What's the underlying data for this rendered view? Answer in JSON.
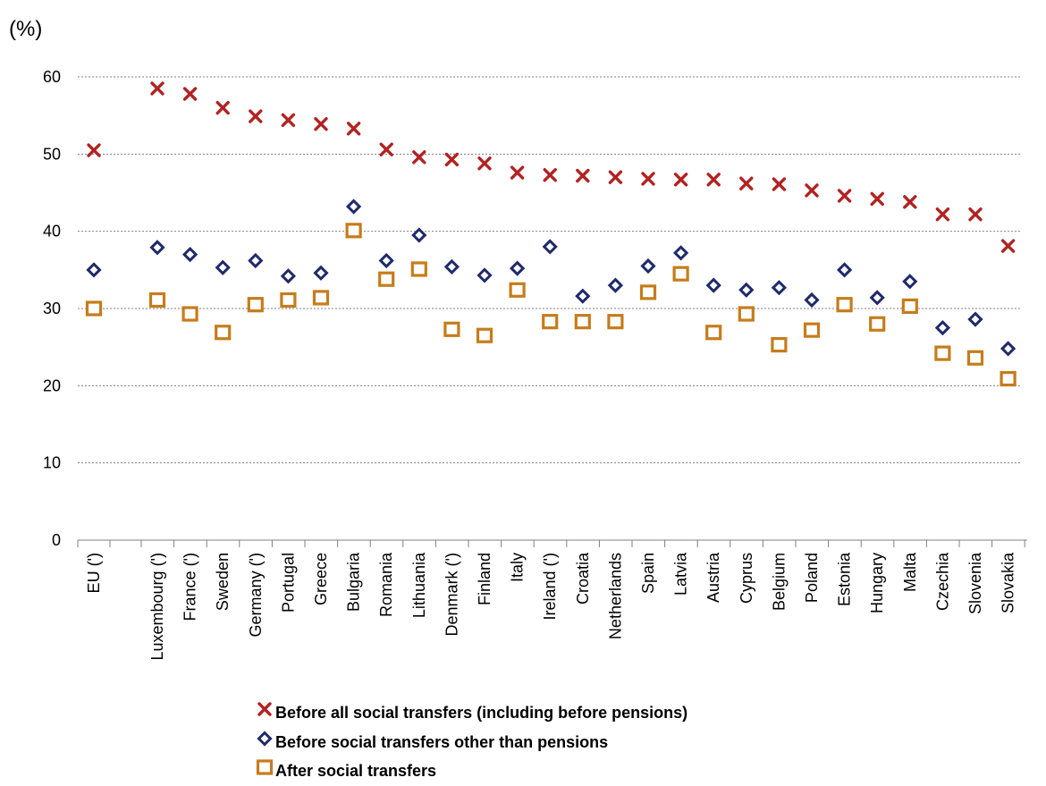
{
  "chart_data": {
    "type": "scatter",
    "unit_label": "(%)",
    "categories": [
      "EU (')",
      "Luxembourg (')",
      "France (')",
      "Sweden",
      "Germany (')",
      "Portugal",
      "Greece",
      "Bulgaria",
      "Romania",
      "Lithuania",
      "Denmark (')",
      "Finland",
      "Italy",
      "Ireland (')",
      "Croatia",
      "Netherlands",
      "Spain",
      "Latvia",
      "Austria",
      "Cyprus",
      "Belgium",
      "Poland",
      "Estonia",
      "Hungary",
      "Malta",
      "Czechia",
      "Slovenia",
      "Slovakia"
    ],
    "ylim": [
      0,
      60
    ],
    "yticks": [
      0,
      10,
      20,
      30,
      40,
      50,
      60
    ],
    "grid": true,
    "legend_position": "bottom",
    "series": [
      {
        "name": "Before all social transfers (including before pensions)",
        "marker": "x",
        "color": "#B22222",
        "values": [
          50.5,
          58.5,
          57.8,
          56.0,
          54.9,
          54.4,
          53.9,
          53.3,
          50.6,
          49.6,
          49.3,
          48.8,
          47.6,
          47.3,
          47.2,
          47.0,
          46.8,
          46.7,
          46.7,
          46.2,
          46.1,
          45.3,
          44.6,
          44.2,
          43.8,
          42.2,
          42.2,
          38.1
        ]
      },
      {
        "name": "Before social transfers other than pensions",
        "marker": "diamond",
        "color": "#1F2A6B",
        "values": [
          35.0,
          37.9,
          37.0,
          35.3,
          36.2,
          34.2,
          34.6,
          43.2,
          36.2,
          39.5,
          35.4,
          34.3,
          35.2,
          38.0,
          31.6,
          33.0,
          35.5,
          37.2,
          33.0,
          32.4,
          32.7,
          31.1,
          35.0,
          31.4,
          33.5,
          27.5,
          28.6,
          24.8
        ]
      },
      {
        "name": "After social transfers",
        "marker": "square",
        "color": "#C67C1A",
        "values": [
          30.0,
          31.1,
          29.3,
          26.9,
          30.5,
          31.1,
          31.4,
          40.1,
          33.8,
          35.1,
          27.3,
          26.5,
          32.4,
          28.3,
          28.3,
          28.3,
          32.1,
          34.5,
          26.9,
          29.3,
          25.3,
          27.2,
          30.5,
          28.0,
          30.3,
          24.2,
          23.6,
          20.9
        ]
      }
    ]
  }
}
